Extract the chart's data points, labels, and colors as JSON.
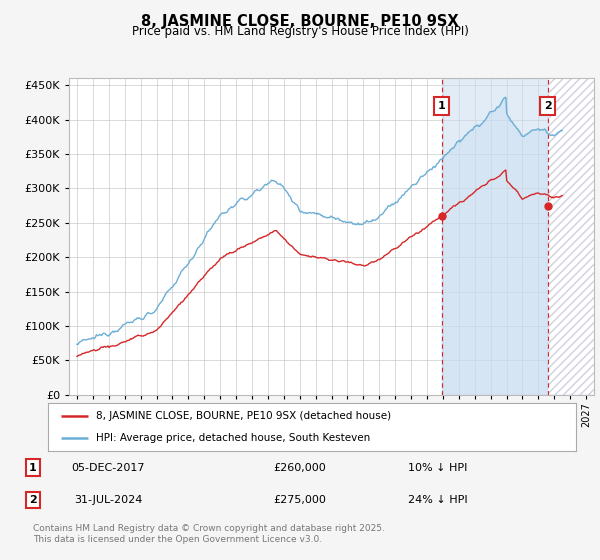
{
  "title": "8, JASMINE CLOSE, BOURNE, PE10 9SX",
  "subtitle": "Price paid vs. HM Land Registry's House Price Index (HPI)",
  "ytick_vals": [
    0,
    50000,
    100000,
    150000,
    200000,
    250000,
    300000,
    350000,
    400000,
    450000
  ],
  "ylim": [
    0,
    460000
  ],
  "xlim_start": 1994.5,
  "xlim_end": 2027.5,
  "hpi_color": "#6baed6",
  "hpi_fill_color": "#c6dbef",
  "price_color": "#d62728",
  "vline_color": "#d62728",
  "marker1_x": 2017.92,
  "marker2_x": 2024.58,
  "marker1_price": 260000,
  "marker2_price": 275000,
  "marker1_label": "05-DEC-2017",
  "marker2_label": "31-JUL-2024",
  "marker1_hpi_text": "10% ↓ HPI",
  "marker2_hpi_text": "24% ↓ HPI",
  "legend_price_label": "8, JASMINE CLOSE, BOURNE, PE10 9SX (detached house)",
  "legend_hpi_label": "HPI: Average price, detached house, South Kesteven",
  "footer": "Contains HM Land Registry data © Crown copyright and database right 2025.\nThis data is licensed under the Open Government Licence v3.0.",
  "fig_bg": "#f5f5f5",
  "plot_bg": "#ffffff",
  "hatch_color": "#d0d0e0"
}
